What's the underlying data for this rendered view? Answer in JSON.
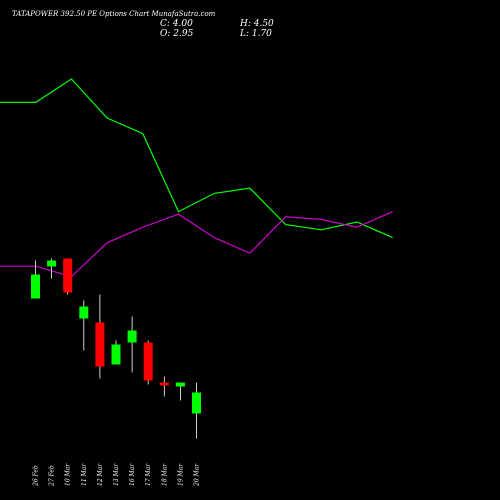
{
  "header": {
    "title": "TATAPOWER 392.50 PE Options Chart MunafaSutra.com",
    "close": "C: 4.00",
    "high": "H: 4.50",
    "open": "O: 2.95",
    "low": "L: 1.70"
  },
  "chart_data": [
    {
      "type": "line",
      "title": "",
      "xlabel": "",
      "ylabel": "",
      "grid": false,
      "x": [
        "",
        "",
        "",
        "",
        "",
        "",
        "",
        "",
        "",
        "",
        "",
        ""
      ],
      "ylim": [
        0,
        100
      ],
      "series": [
        {
          "color": "#00ff00",
          "values": [
            76,
            76,
            85,
            70,
            64,
            34,
            41,
            43,
            29,
            27,
            30,
            24
          ]
        },
        {
          "color": "#cc00cc",
          "values": [
            13,
            13,
            9,
            22,
            28,
            33,
            24,
            18,
            32,
            31,
            28,
            34
          ]
        }
      ]
    },
    {
      "type": "candlestick",
      "categories": [
        "26 Feb",
        "27 Feb",
        "10 Mar",
        "11 Mar",
        "12 Mar",
        "13 Mar",
        "16 Mar",
        "17 Mar",
        "18 Mar",
        "19 Mar",
        "20 Mar"
      ],
      "ylim": [
        1.5,
        12.5
      ],
      "colors": {
        "up": "#00ff00",
        "down": "#ff0000"
      },
      "candles": [
        {
          "open": 8.7,
          "high": 10.6,
          "low": 8.7,
          "close": 9.9
        },
        {
          "open": 10.3,
          "high": 10.7,
          "low": 9.7,
          "close": 10.6
        },
        {
          "open": 10.7,
          "high": 10.7,
          "low": 8.9,
          "close": 9.0
        },
        {
          "open": 7.7,
          "high": 8.6,
          "low": 6.1,
          "close": 8.3
        },
        {
          "open": 7.5,
          "high": 8.9,
          "low": 4.7,
          "close": 5.3
        },
        {
          "open": 5.4,
          "high": 6.6,
          "low": 5.4,
          "close": 6.4
        },
        {
          "open": 6.5,
          "high": 7.8,
          "low": 5.0,
          "close": 7.1
        },
        {
          "open": 6.5,
          "high": 6.6,
          "low": 4.4,
          "close": 4.6
        },
        {
          "open": 4.5,
          "high": 4.8,
          "low": 3.8,
          "close": 4.35
        },
        {
          "open": 4.3,
          "high": 4.5,
          "low": 3.6,
          "close": 4.5
        },
        {
          "open": 2.95,
          "high": 4.5,
          "low": 1.7,
          "close": 4.0
        }
      ]
    }
  ]
}
